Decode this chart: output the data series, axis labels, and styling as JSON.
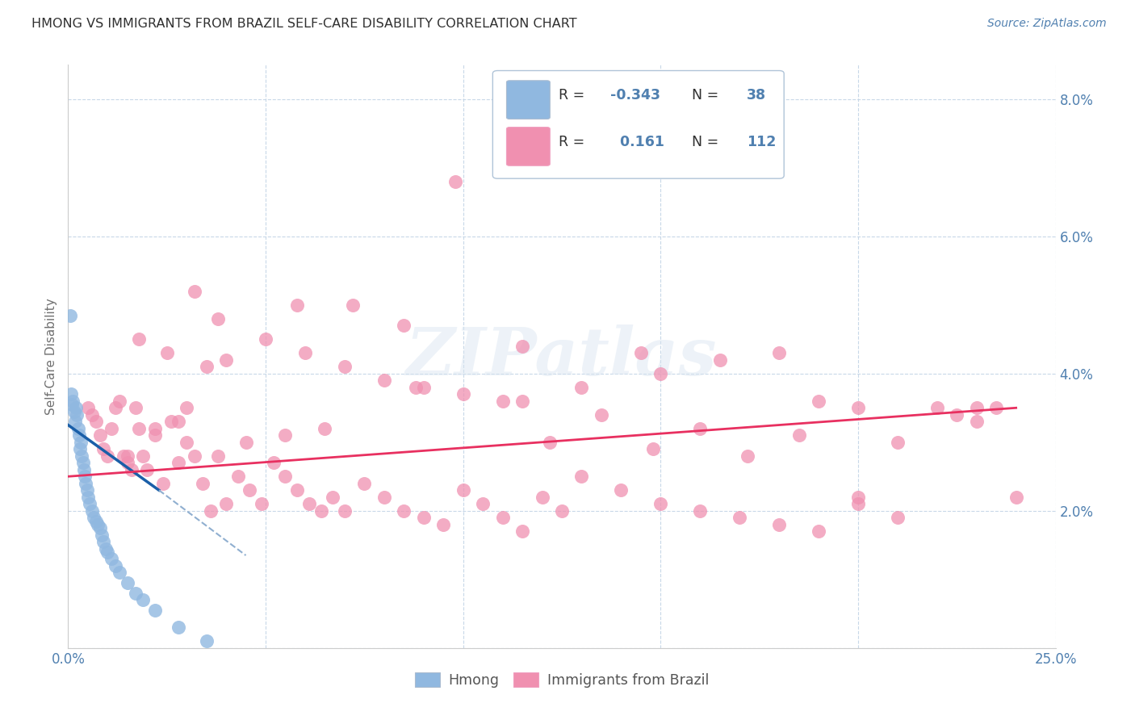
{
  "title": "HMONG VS IMMIGRANTS FROM BRAZIL SELF-CARE DISABILITY CORRELATION CHART",
  "source": "Source: ZipAtlas.com",
  "ylabel": "Self-Care Disability",
  "xlim": [
    0.0,
    25.0
  ],
  "ylim": [
    0.0,
    8.5
  ],
  "yticks": [
    0.0,
    2.0,
    4.0,
    6.0,
    8.0
  ],
  "ytick_labels": [
    "",
    "2.0%",
    "4.0%",
    "6.0%",
    "8.0%"
  ],
  "color_hmong": "#90b8e0",
  "color_brazil": "#f090b0",
  "color_hmong_line": "#1a5fa8",
  "color_brazil_line": "#e83060",
  "color_hmong_dashed": "#90afd0",
  "background": "#ffffff",
  "grid_color": "#c8d8e8",
  "title_color": "#303030",
  "source_color": "#5080b0",
  "axis_label_color": "#5080b0",
  "ylabel_color": "#707070",
  "legend_text_color": "#303030",
  "hmong_x": [
    0.05,
    0.08,
    0.1,
    0.12,
    0.15,
    0.18,
    0.2,
    0.22,
    0.25,
    0.28,
    0.3,
    0.32,
    0.35,
    0.38,
    0.4,
    0.42,
    0.45,
    0.48,
    0.5,
    0.55,
    0.6,
    0.65,
    0.7,
    0.75,
    0.8,
    0.85,
    0.9,
    0.95,
    1.0,
    1.1,
    1.2,
    1.3,
    1.5,
    1.7,
    1.9,
    2.2,
    2.8,
    3.5
  ],
  "hmong_y": [
    4.85,
    3.7,
    3.55,
    3.6,
    3.45,
    3.3,
    3.5,
    3.4,
    3.2,
    3.1,
    2.9,
    3.0,
    2.8,
    2.7,
    2.6,
    2.5,
    2.4,
    2.3,
    2.2,
    2.1,
    2.0,
    1.9,
    1.85,
    1.8,
    1.75,
    1.65,
    1.55,
    1.45,
    1.4,
    1.3,
    1.2,
    1.1,
    0.95,
    0.8,
    0.7,
    0.55,
    0.3,
    0.1
  ],
  "brazil_x": [
    0.5,
    0.6,
    0.7,
    0.8,
    0.9,
    1.0,
    1.1,
    1.2,
    1.3,
    1.4,
    1.5,
    1.6,
    1.7,
    1.8,
    1.9,
    2.0,
    2.2,
    2.4,
    2.6,
    2.8,
    3.0,
    3.2,
    3.4,
    3.6,
    3.8,
    4.0,
    4.3,
    4.6,
    4.9,
    5.2,
    5.5,
    5.8,
    6.1,
    6.4,
    6.7,
    7.0,
    7.5,
    8.0,
    8.5,
    9.0,
    9.5,
    10.0,
    10.5,
    11.0,
    11.5,
    12.0,
    12.5,
    13.0,
    14.0,
    15.0,
    16.0,
    17.0,
    18.0,
    19.0,
    20.0,
    21.0,
    22.0,
    23.0,
    24.0,
    1.8,
    2.5,
    3.0,
    3.5,
    4.0,
    5.0,
    6.0,
    7.0,
    8.0,
    9.0,
    10.0,
    11.5,
    13.0,
    14.5,
    16.5,
    18.0,
    20.0,
    22.5,
    2.2,
    3.8,
    5.5,
    7.2,
    9.8,
    12.2,
    14.8,
    17.2,
    20.0,
    23.0,
    1.5,
    2.8,
    4.5,
    6.5,
    8.8,
    11.0,
    13.5,
    16.0,
    18.5,
    21.0,
    3.2,
    5.8,
    8.5,
    11.5,
    15.0,
    19.0,
    23.5
  ],
  "brazil_y": [
    3.5,
    3.4,
    3.3,
    3.1,
    2.9,
    2.8,
    3.2,
    3.5,
    3.6,
    2.8,
    2.7,
    2.6,
    3.5,
    3.2,
    2.8,
    2.6,
    3.1,
    2.4,
    3.3,
    2.7,
    3.0,
    2.8,
    2.4,
    2.0,
    2.8,
    2.1,
    2.5,
    2.3,
    2.1,
    2.7,
    2.5,
    2.3,
    2.1,
    2.0,
    2.2,
    2.0,
    2.4,
    2.2,
    2.0,
    1.9,
    1.8,
    2.3,
    2.1,
    1.9,
    1.7,
    2.2,
    2.0,
    2.5,
    2.3,
    2.1,
    2.0,
    1.9,
    1.8,
    1.7,
    2.2,
    1.9,
    3.5,
    3.5,
    2.2,
    4.5,
    4.3,
    3.5,
    4.1,
    4.2,
    4.5,
    4.3,
    4.1,
    3.9,
    3.8,
    3.7,
    3.6,
    3.8,
    4.3,
    4.2,
    4.3,
    3.5,
    3.4,
    3.2,
    4.8,
    3.1,
    5.0,
    6.8,
    3.0,
    2.9,
    2.8,
    2.1,
    3.3,
    2.8,
    3.3,
    3.0,
    3.2,
    3.8,
    3.6,
    3.4,
    3.2,
    3.1,
    3.0,
    5.2,
    5.0,
    4.7,
    4.4,
    4.0,
    3.6,
    3.5
  ],
  "hmong_line_x0": 0.0,
  "hmong_line_x1": 2.3,
  "hmong_line_y0": 3.25,
  "hmong_line_y1": 2.3,
  "hmong_dash_x0": 2.3,
  "hmong_dash_x1": 4.5,
  "hmong_dash_y0": 2.3,
  "hmong_dash_y1": 1.35,
  "brazil_line_x0": 0.0,
  "brazil_line_x1": 24.0,
  "brazil_line_y0": 2.5,
  "brazil_line_y1": 3.5
}
